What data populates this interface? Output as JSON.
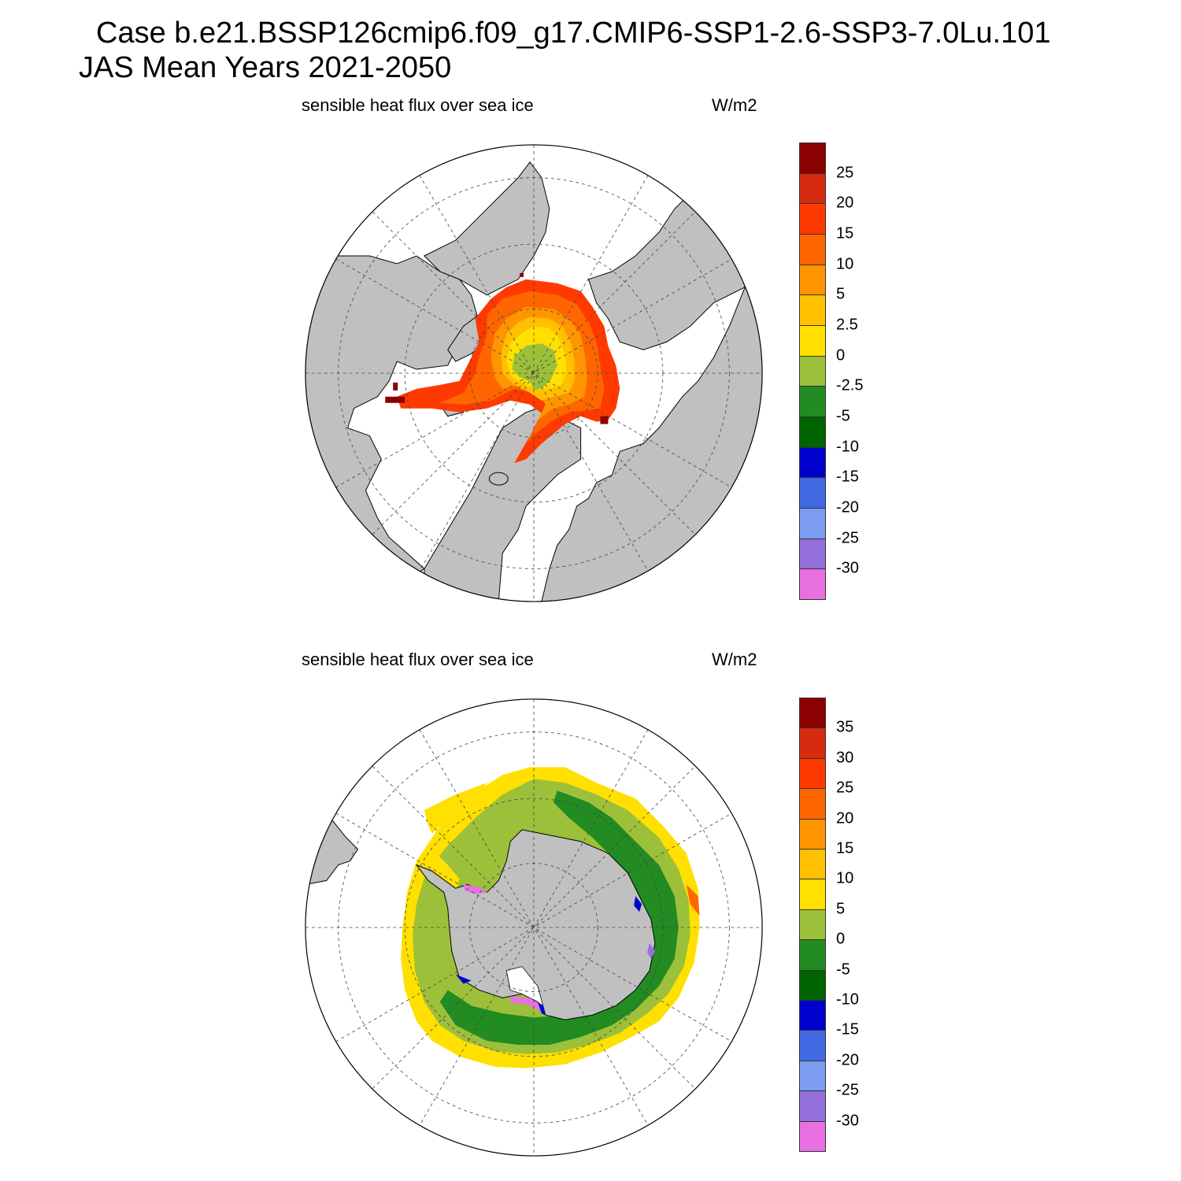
{
  "header": {
    "line1": "Case b.e21.BSSP126cmip6.f09_g17.CMIP6-SSP1-2.6-SSP3-7.0Lu.101",
    "line2": "JAS Mean   Years 2021-2050"
  },
  "panels": [
    {
      "id": "north",
      "hemisphere": "north polar stereographic",
      "title": "sensible heat flux over sea ice",
      "units": "W/m2",
      "colorbar": {
        "labels": [
          "25",
          "20",
          "15",
          "10",
          "5",
          "2.5",
          "0",
          "-2.5",
          "-5",
          "-10",
          "-15",
          "-20",
          "-25",
          "-30"
        ],
        "colors": [
          "#8b0000",
          "#d62b0e",
          "#ff3a00",
          "#ff6600",
          "#ff9500",
          "#ffc000",
          "#ffe000",
          "#9cc03a",
          "#228b22",
          "#006400",
          "#0000cd",
          "#4169e1",
          "#7b9cf0",
          "#9370db",
          "#e870e0"
        ]
      }
    },
    {
      "id": "south",
      "hemisphere": "south polar stereographic",
      "title": "sensible heat flux over sea ice",
      "units": "W/m2",
      "colorbar": {
        "labels": [
          "35",
          "30",
          "25",
          "20",
          "15",
          "10",
          "5",
          "0",
          "-5",
          "-10",
          "-15",
          "-20",
          "-25",
          "-30"
        ],
        "colors": [
          "#8b0000",
          "#d62b0e",
          "#ff3a00",
          "#ff6600",
          "#ff9500",
          "#ffc000",
          "#ffe000",
          "#9cc03a",
          "#228b22",
          "#006400",
          "#0000cd",
          "#4169e1",
          "#7b9cf0",
          "#9370db",
          "#e870e0"
        ]
      }
    }
  ],
  "colors": {
    "land": "#c0c0c0",
    "ocean": "#ffffff",
    "coast": "#000000",
    "grid": "#444444"
  }
}
